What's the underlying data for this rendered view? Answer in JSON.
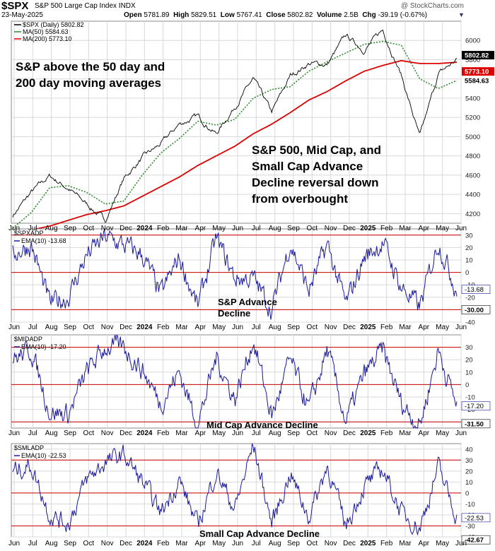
{
  "header": {
    "symbol": "$SPX",
    "name": "S&P 500 Large Cap Index",
    "exchange": "INDX",
    "date": "23-May-2025",
    "open_label": "Open",
    "open": "5781.89",
    "high_label": "High",
    "high": "5829.51",
    "low_label": "Low",
    "low": "5767.41",
    "close_label": "Close",
    "close": "5802.82",
    "volume_label": "Volume",
    "volume": "2.5B",
    "chg_label": "Chg",
    "chg": "-39.19 (-0.67%)",
    "watermark": "@ StockCharts.com"
  },
  "colors": {
    "price": "#000000",
    "ma50": "#2e8b2e",
    "ma200": "#dd0000",
    "oscillator": "#1a1a9c",
    "ref_lines": "#cc0000",
    "grid": "#d8d8d8",
    "tag_bg": "#000000"
  },
  "chart_data": [
    {
      "type": "line",
      "panel": "price",
      "legend": [
        "$SPX (Daily) 5802.82",
        "MA(50) 5584.63",
        "MA(200) 5773.10"
      ],
      "annotations": [
        "S&P above the 50 day and",
        "200 day moving averages",
        "S&P 500, Mid Cap, and",
        "Small Cap Advance",
        "Decline reversal down",
        "from overbought"
      ],
      "ylim": [
        4100,
        6200
      ],
      "y_ticks": [
        4200,
        4400,
        4600,
        4800,
        5000,
        5200,
        5400,
        5600,
        5800,
        6000
      ],
      "last_values": {
        "price": "5802.82",
        "ma50": "5584.63",
        "ma200": "5773.10"
      },
      "x": [
        "Jun 2023",
        "Jul 2023",
        "Aug 2023",
        "Sep 2023",
        "Oct 2023",
        "Nov 2023",
        "Dec 2023",
        "Jan 2024",
        "Feb 2024",
        "Mar 2024",
        "Apr 2024",
        "May 2024",
        "Jun 2024",
        "Jul 2024",
        "Aug 2024",
        "Sep 2024",
        "Oct 2024",
        "Nov 2024",
        "Dec 2024",
        "Jan 2025",
        "Feb 2025",
        "Mar 2025",
        "Apr 2025",
        "May 2025",
        "Jun 2025"
      ],
      "series": [
        {
          "name": "$SPX (Daily)",
          "values": [
            4180,
            4420,
            4590,
            4460,
            4300,
            4130,
            4560,
            4780,
            4920,
            5130,
            5210,
            5030,
            5310,
            5600,
            5250,
            5630,
            5760,
            5750,
            6050,
            5900,
            6110,
            5640,
            4990,
            5650,
            5800
          ]
        },
        {
          "name": "MA(50)",
          "values": [
            4050,
            4210,
            4470,
            4490,
            4420,
            4300,
            4330,
            4600,
            4830,
            4980,
            5160,
            5120,
            5180,
            5400,
            5490,
            5520,
            5680,
            5780,
            5870,
            5960,
            5990,
            5950,
            5600,
            5500,
            5584
          ]
        },
        {
          "name": "MA(200)",
          "values": [
            4000,
            4030,
            4070,
            4130,
            4190,
            4230,
            4280,
            4380,
            4480,
            4580,
            4700,
            4800,
            4900,
            5030,
            5130,
            5250,
            5380,
            5470,
            5580,
            5680,
            5740,
            5790,
            5760,
            5760,
            5773
          ]
        }
      ]
    },
    {
      "type": "line",
      "panel": "oscillator",
      "symbol": "$SPXADP",
      "legend": [
        "$SPXADP",
        "EMA(10) -13.68"
      ],
      "annotation": [
        "S&P Advance",
        "Decline"
      ],
      "ylim": [
        -40,
        35
      ],
      "y_ticks": [
        -40,
        -30,
        -20,
        -10,
        0,
        10,
        20,
        30
      ],
      "ref_lines": [
        30,
        0,
        -30
      ],
      "last_values": [
        "-13.68",
        "-30.00"
      ],
      "x": [
        "Jun 2023",
        "Jul 2023",
        "Aug 2023",
        "Sep 2023",
        "Oct 2023",
        "Nov 2023",
        "Dec 2023",
        "Jan 2024",
        "Feb 2024",
        "Mar 2024",
        "Apr 2024",
        "May 2024",
        "Jun 2024",
        "Jul 2024",
        "Aug 2024",
        "Sep 2024",
        "Oct 2024",
        "Nov 2024",
        "Dec 2024",
        "Jan 2025",
        "Feb 2025",
        "Mar 2025",
        "Apr 2025",
        "May 2025",
        "Jun 2025"
      ],
      "series": [
        {
          "name": "EMA(10)",
          "values": [
            15,
            22,
            -25,
            -20,
            14,
            28,
            22,
            14,
            -18,
            12,
            -28,
            27,
            -5,
            -5,
            -30,
            24,
            -15,
            22,
            -26,
            12,
            24,
            -12,
            -28,
            25,
            -14
          ]
        }
      ]
    },
    {
      "type": "line",
      "panel": "oscillator",
      "symbol": "$MIDADP",
      "legend": [
        "$MIDADP",
        "EMA(10) -17.20"
      ],
      "annotation": [
        "Mid Cap Advance Decline"
      ],
      "ylim": [
        -35,
        40
      ],
      "y_ticks": [
        -30,
        -20,
        -10,
        0,
        10,
        20,
        30
      ],
      "ref_lines": [
        30,
        0,
        -30
      ],
      "last_values": [
        "-17.20",
        "-31.50"
      ],
      "x": [
        "Jun 2023",
        "Jul 2023",
        "Aug 2023",
        "Sep 2023",
        "Oct 2023",
        "Nov 2023",
        "Dec 2023",
        "Jan 2024",
        "Feb 2024",
        "Mar 2024",
        "Apr 2024",
        "May 2024",
        "Jun 2024",
        "Jul 2024",
        "Aug 2024",
        "Sep 2024",
        "Oct 2024",
        "Nov 2024",
        "Dec 2024",
        "Jan 2025",
        "Feb 2025",
        "Mar 2025",
        "Apr 2025",
        "May 2025",
        "Jun 2025"
      ],
      "series": [
        {
          "name": "EMA(10)",
          "values": [
            20,
            28,
            -22,
            -24,
            10,
            30,
            30,
            12,
            -15,
            10,
            -32,
            22,
            -12,
            36,
            -26,
            20,
            -20,
            28,
            -30,
            8,
            28,
            -15,
            -33,
            28,
            -17
          ]
        }
      ]
    },
    {
      "type": "line",
      "panel": "oscillator",
      "symbol": "$SMLADP",
      "legend": [
        "$SMLADP",
        "EMA(10) -22.53"
      ],
      "annotation": [
        "Small Cap Advance Decline"
      ],
      "ylim": [
        -40,
        45
      ],
      "y_ticks": [
        -40,
        -30,
        -20,
        -10,
        0,
        10,
        20,
        30,
        40
      ],
      "ref_lines": [
        30,
        0,
        -30
      ],
      "last_values": [
        "-22.53",
        "-42.67"
      ],
      "x": [
        "Jun 2023",
        "Jul 2023",
        "Aug 2023",
        "Sep 2023",
        "Oct 2023",
        "Nov 2023",
        "Dec 2023",
        "Jan 2024",
        "Feb 2024",
        "Mar 2024",
        "Apr 2024",
        "May 2024",
        "Jun 2024",
        "Jul 2024",
        "Aug 2024",
        "Sep 2024",
        "Oct 2024",
        "Nov 2024",
        "Dec 2024",
        "Jan 2025",
        "Feb 2025",
        "Mar 2025",
        "Apr 2025",
        "May 2025",
        "Jun 2025"
      ],
      "series": [
        {
          "name": "EMA(10)",
          "values": [
            20,
            25,
            -20,
            -28,
            12,
            28,
            35,
            10,
            -18,
            12,
            -30,
            20,
            -15,
            44,
            -28,
            18,
            -22,
            25,
            -30,
            6,
            22,
            -18,
            -32,
            24,
            -22
          ]
        }
      ]
    }
  ],
  "x_axis_labels": [
    "Jun",
    "Jul",
    "Aug",
    "Sep",
    "Oct",
    "Nov",
    "Dec",
    "2024",
    "Feb",
    "Mar",
    "Apr",
    "May",
    "Jun",
    "Jul",
    "Aug",
    "Sep",
    "Oct",
    "Nov",
    "Dec",
    "2025",
    "Feb",
    "Mar",
    "Apr",
    "May",
    "Jun"
  ]
}
